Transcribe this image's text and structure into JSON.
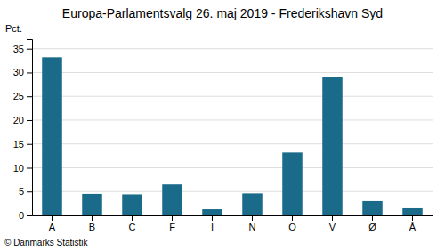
{
  "chart_data": {
    "type": "bar",
    "title": "Europa-Parlamentsvalg 26. maj 2019 - Frederikshavn Syd",
    "ylabel": "Pct.",
    "annotations": [
      "© Danmarks Statistik"
    ],
    "categories": [
      "A",
      "B",
      "C",
      "F",
      "I",
      "N",
      "O",
      "V",
      "Ø",
      "Å"
    ],
    "values": [
      33.2,
      4.5,
      4.4,
      6.5,
      1.3,
      4.6,
      13.2,
      29.1,
      3.0,
      1.5
    ],
    "color": "#1a6b8a",
    "ylim": [
      0,
      37
    ],
    "yticks": [
      0,
      5,
      10,
      15,
      20,
      25,
      30,
      35
    ],
    "grid": true
  }
}
